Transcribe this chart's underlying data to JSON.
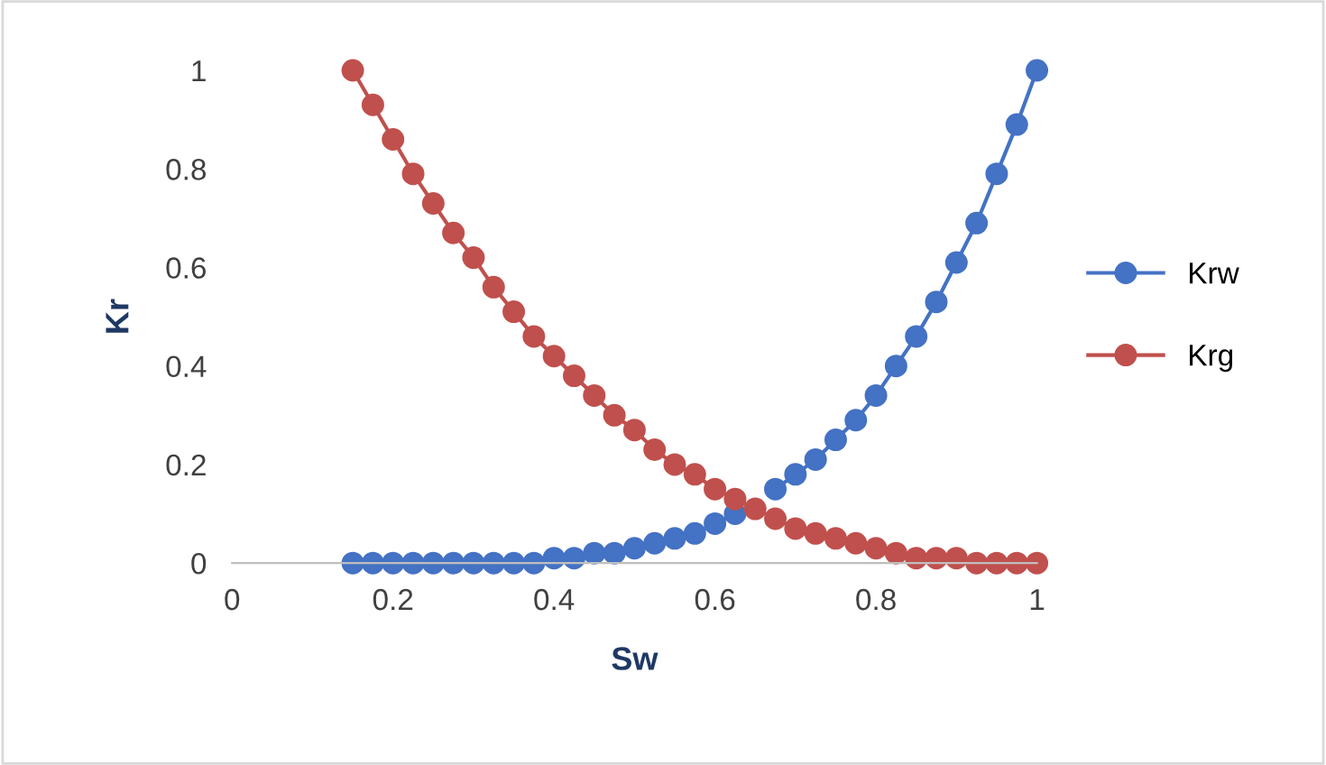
{
  "chart_data": {
    "type": "line",
    "xlabel": "Sw",
    "ylabel": "Kr",
    "x": [
      0.15,
      0.175,
      0.2,
      0.225,
      0.25,
      0.275,
      0.3,
      0.325,
      0.35,
      0.375,
      0.4,
      0.425,
      0.45,
      0.475,
      0.5,
      0.525,
      0.55,
      0.575,
      0.6,
      0.625,
      0.65,
      0.675,
      0.7,
      0.725,
      0.75,
      0.775,
      0.8,
      0.825,
      0.85,
      0.875,
      0.9,
      0.925,
      0.95,
      0.975,
      1
    ],
    "series": [
      {
        "name": "Krw",
        "color": "#4472c4",
        "values": [
          0,
          0,
          0,
          0,
          0,
          0,
          0,
          0,
          0,
          0,
          0.01,
          0.01,
          0.02,
          0.02,
          0.03,
          0.04,
          0.05,
          0.06,
          0.08,
          0.1,
          null,
          0.15,
          0.18,
          0.21,
          0.25,
          0.29,
          0.34,
          0.4,
          0.46,
          0.53,
          0.61,
          0.69,
          0.79,
          0.89,
          1
        ]
      },
      {
        "name": "Krg",
        "color": "#c0504d",
        "values": [
          1,
          0.93,
          0.86,
          0.79,
          0.73,
          0.67,
          0.62,
          0.56,
          0.51,
          0.46,
          0.42,
          0.38,
          0.34,
          0.3,
          0.27,
          0.23,
          0.2,
          0.18,
          0.15,
          0.13,
          0.11,
          0.09,
          0.07,
          0.06,
          0.05,
          0.04,
          0.03,
          0.02,
          0.01,
          0.01,
          0.01,
          0,
          0,
          0,
          0
        ]
      }
    ],
    "xlim": [
      0,
      1
    ],
    "ylim": [
      0,
      1
    ],
    "xticks": [
      0,
      0.2,
      0.4,
      0.6,
      0.8,
      1
    ],
    "yticks": [
      0,
      0.2,
      0.4,
      0.6,
      0.8,
      1
    ],
    "grid": false,
    "legend": "right",
    "marker": "circle",
    "line_style": "solid"
  }
}
